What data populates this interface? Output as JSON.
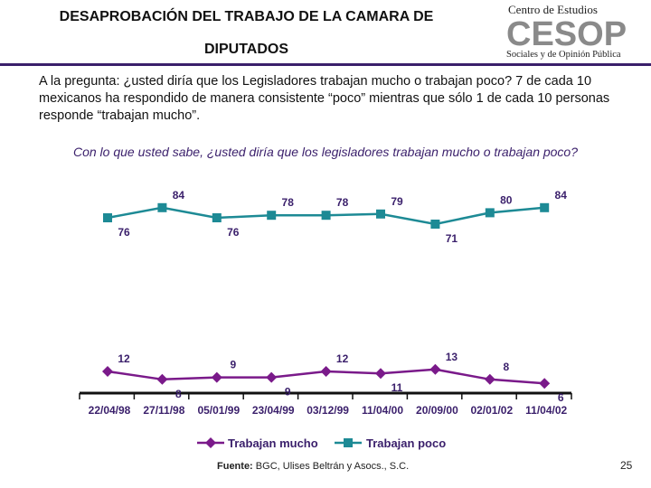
{
  "header": {
    "title_line1": "DESAPROBACIÓN DEL TRABAJO DE LA CAMARA DE",
    "title_line2": "DIPUTADOS",
    "logo_top": "Centro de Estudios",
    "logo_mid": "CESOP",
    "logo_bottom": "Sociales y de Opinión Pública"
  },
  "intro_text": "A la pregunta: ¿usted diría que los Legisladores trabajan mucho o trabajan poco? 7 de cada 10 mexicanos ha respondido de manera consistente “poco” mientras que sólo 1 de cada 10 personas responde “trabajan mucho”.",
  "question": "Con lo que usted sabe, ¿usted diría que los legisladores trabajan mucho o trabajan poco?",
  "colors": {
    "mucho": "#7a1a8a",
    "poco": "#1d8a95",
    "axis": "#111111",
    "label": "#3a1f6b"
  },
  "chart_data": {
    "type": "line",
    "title": "Con lo que usted sabe, ¿usted diría que los legisladores trabajan mucho o trabajan poco?",
    "categories": [
      "22/04/98",
      "27/11/98",
      "05/01/99",
      "23/04/99",
      "03/12/99",
      "11/04/00",
      "20/09/00",
      "02/01/02",
      "11/04/02"
    ],
    "series": [
      {
        "name": "Trabajan mucho",
        "values": [
          12,
          8,
          9,
          9,
          12,
          11,
          13,
          8,
          6
        ]
      },
      {
        "name": "Trabajan poco",
        "values": [
          76,
          84,
          76,
          78,
          78,
          79,
          71,
          80,
          84
        ]
      }
    ],
    "legend": "bottom",
    "grid": false
  },
  "footer": {
    "source_label": "Fuente:",
    "source_text": "BGC, Ulises Beltrán y Asocs., S.C.",
    "page_number": "25"
  }
}
